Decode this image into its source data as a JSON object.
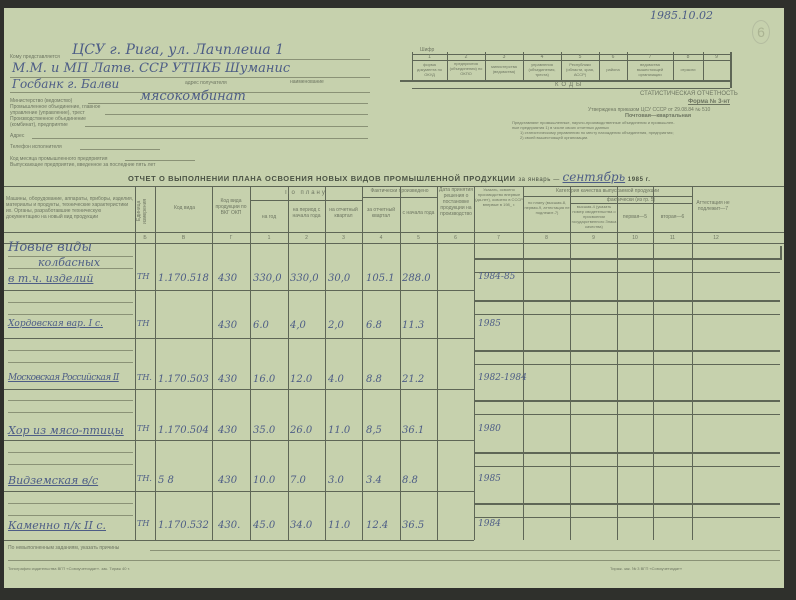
{
  "stamp": {
    "date": "1985.10.02",
    "sheet_number": "6"
  },
  "header_left": {
    "to_whom_label": "Кому представляется",
    "to_whom_value": "ЦСУ г. Рига, ул. Лачплеша 1",
    "name_label": "наименование",
    "name_value": "М.М. и МП Латв. ССР УТПКБ Шуманис",
    "address_label": "адрес получателя",
    "address_value": "Госбанк г. Балви",
    "ministry_label": "Министерство (ведомство)",
    "association_label_1": "Промышленное объединение, главное",
    "association_label_2": "управление (управление), трест",
    "enterprise_label_1": "Производственное объединение",
    "enterprise_label_2": "(комбинат), предприятие",
    "enterprise_value": "мясокомбинат",
    "address2_label": "Адрес",
    "phone_label": "Телефон исполнителя",
    "note_1": "Код месяца промышленного предприятия",
    "note_2": "Выпускающее предприятие, введенное за последние пять лет"
  },
  "codes_box": {
    "title": "КОДЫ",
    "top_label": "Шифр",
    "numbers": [
      "1",
      "2",
      "3",
      "4",
      "5",
      "6",
      "7",
      "8",
      "9"
    ],
    "labels": [
      "форма документа по ОКУД",
      "предприятия (объединения) по ОКПО",
      "министерства (ведомства)",
      "управления (объединения, треста)",
      "Республики (области, края, АССР)",
      "района",
      "ведомства вышестоящей организации",
      "отрасли",
      ""
    ]
  },
  "header_right": {
    "reporting": "СТАТИСТИЧЕСКАЯ ОТЧЕТНОСТЬ",
    "form": "Форма № 3-нт",
    "approved": "Утверждена приказом ЦСУ СССР от 29.08.84 № 510",
    "frequency": "Почтовая—квартальная",
    "desc_1": "Представляют промышленные, научно-производственные объединения и промышлен-",
    "desc_2": "ные предприятия 1) в числе своих отчетных данных",
    "desc_3": "1) статистическому управлению по месту нахождения объединения, предприятия;",
    "desc_4": "2) своей вышестоящей организации."
  },
  "title": {
    "text": "ОТЧЕТ О ВЫПОЛНЕНИИ ПЛАНА ОСВОЕНИЯ  НОВЫХ ВИДОВ ПРОМЫШЛЕННОЙ  ПРОДУКЦИИ",
    "period_prefix": "за январь —",
    "period_value": "сентябрь",
    "year": "1985 г."
  },
  "table": {
    "headers": {
      "name": "Машины, оборудование, аппараты, приборы, изделия, материалы и продукты, технические характеристики их. Органы, разработавшие техническую документацию на новый вид продукции",
      "unit": "Единица измерения",
      "item_code": "Код вида",
      "okp_code": "Код вида продукции по ВКГ ОКП",
      "plan_group": "По плану",
      "plan_year": "на год",
      "plan_period": "на период с начала года",
      "plan_quarter": "на отчетный квартал",
      "fact_group": "Фактически произведено",
      "fact_quarter": "за отчетный квартал",
      "fact_since": "с начала года",
      "date": "Дата принятия решения о постановке продукции на производство",
      "col7": "Указать, освоено производство впервые (да-нет), освоено в СССР впервые в 198_ г.",
      "quality_group": "Категория качества выпускаемой продукции",
      "col8": "по плану (высшая-8, первая-9, аттестация не подлежит-7)",
      "actual_group": "фактически (из гр. 5)",
      "col9": "высшая-4 (указать номер свидетельства о присвоении государственного Знака качества)",
      "col10": "первая—5",
      "col11": "вторая—6",
      "col12": "Аттестация не подлежит—7"
    },
    "column_numbers": [
      "Б",
      "В",
      "Г",
      "1",
      "2",
      "3",
      "4",
      "5",
      "6",
      "7",
      "8",
      "9",
      "10",
      "11",
      "12"
    ],
    "rows": [
      {
        "name": "Новые виды",
        "name2": "колбасных",
        "name3": "в т.ч. изделий",
        "unit": "ТН",
        "code": "1.170.518",
        "okp": "430",
        "plan_year": "330,0",
        "plan_period": "330,0",
        "plan_quarter": "30,0",
        "fact_quarter": "105.1",
        "fact_since": "288.0",
        "col7": "1984-85"
      },
      {
        "name": "Хордовская вар. I с.",
        "unit": "ТН",
        "code": "",
        "okp": "430",
        "plan_year": "6.0",
        "plan_period": "4,0",
        "plan_quarter": "2,0",
        "fact_quarter": "6.8",
        "fact_since": "11.3",
        "col7": "1985"
      },
      {
        "name": "Московская Российская II",
        "unit": "ТН.",
        "code": "1.170.503",
        "okp": "430",
        "plan_year": "16.0",
        "plan_period": "12.0",
        "plan_quarter": "4.0",
        "fact_quarter": "8.8",
        "fact_since": "21.2",
        "col7": "1982-1984"
      },
      {
        "name": "Хор из мясо-птицы",
        "unit": "ТН",
        "code": "1.170.504",
        "okp": "430",
        "plan_year": "35.0",
        "plan_period": "26.0",
        "plan_quarter": "11.0",
        "fact_quarter": "8,5",
        "fact_since": "36.1",
        "col7": "1980"
      },
      {
        "name": "Видземская в/с",
        "unit": "ТН.",
        "code": "5 8",
        "okp": "430",
        "plan_year": "10.0",
        "plan_period": "7.0",
        "plan_quarter": "3.0",
        "fact_quarter": "3.4",
        "fact_since": "8.8",
        "col7": "1985"
      },
      {
        "name": "Каменно п/к II с.",
        "unit": "ТН",
        "code": "1.170.532",
        "okp": "430.",
        "plan_year": "45.0",
        "plan_period": "34.0",
        "plan_quarter": "11.0",
        "fact_quarter": "12.4",
        "fact_since": "36.5",
        "col7": "1984"
      }
    ]
  },
  "footer": {
    "reason_label": "По невыполненным заданиям, указать причины",
    "printer_left": "Типография издательства ВГП «Союзучетиздат». зак. Тираж 40 т.",
    "printer_right": "Тираж. зак. № 3 ВГП «Союзучетиздат»"
  }
}
